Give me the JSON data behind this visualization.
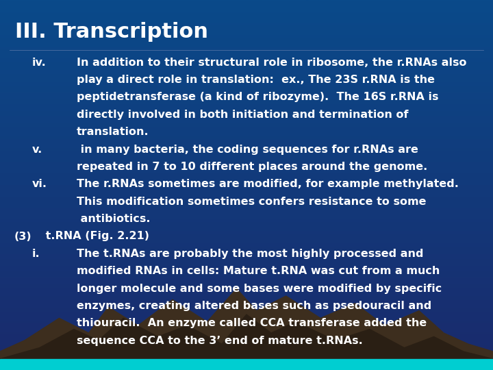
{
  "title": "III. Transcription",
  "title_color": "#FFFFFF",
  "title_fontsize": 22,
  "background_top": "#1a2a6c",
  "background_bottom": "#0a4a8a",
  "text_color": "#FFFFFF",
  "body_fontsize": 11.5,
  "lines": [
    {
      "indent": 1,
      "label": "iv.",
      "text": "In addition to their structural role in ribosome, the r.RNAs also"
    },
    {
      "indent": 2,
      "label": "",
      "text": "play a direct role in translation:  ex., The 23S r.RNA is the"
    },
    {
      "indent": 2,
      "label": "",
      "text": "peptidetransferase (a kind of ribozyme).  The 16S r.RNA is"
    },
    {
      "indent": 2,
      "label": "",
      "text": "directly involved in both initiation and termination of"
    },
    {
      "indent": 2,
      "label": "",
      "text": "translation."
    },
    {
      "indent": 1,
      "label": "v.",
      "text": " in many bacteria, the coding sequences for r.RNAs are"
    },
    {
      "indent": 2,
      "label": "",
      "text": "repeated in 7 to 10 different places around the genome."
    },
    {
      "indent": 1,
      "label": "vi.",
      "text": "The r.RNAs sometimes are modified, for example methylated."
    },
    {
      "indent": 2,
      "label": "",
      "text": "This modification sometimes confers resistance to some"
    },
    {
      "indent": 2,
      "label": "",
      "text": " antibiotics."
    },
    {
      "indent": 0,
      "label": "(3)",
      "text": " t.RNA (Fig. 2.21)"
    },
    {
      "indent": 1,
      "label": "i.",
      "text": "The t.RNAs are probably the most highly processed and"
    },
    {
      "indent": 2,
      "label": "",
      "text": "modified RNAs in cells: Mature t.RNA was cut from a much"
    },
    {
      "indent": 2,
      "label": "",
      "text": "longer molecule and some bases were modified by specific"
    },
    {
      "indent": 2,
      "label": "",
      "text": "enzymes, creating altered bases such as psedouracil and"
    },
    {
      "indent": 2,
      "label": "",
      "text": "thiouracil.  An enzyme called CCA transferase added the"
    },
    {
      "indent": 2,
      "label": "",
      "text": "sequence CCA to the 3’ end of mature t.RNAs."
    }
  ],
  "mountain_color1": "#3d2e1e",
  "mountain_color2": "#2a1f14",
  "teal_bar_color": "#00CED1"
}
